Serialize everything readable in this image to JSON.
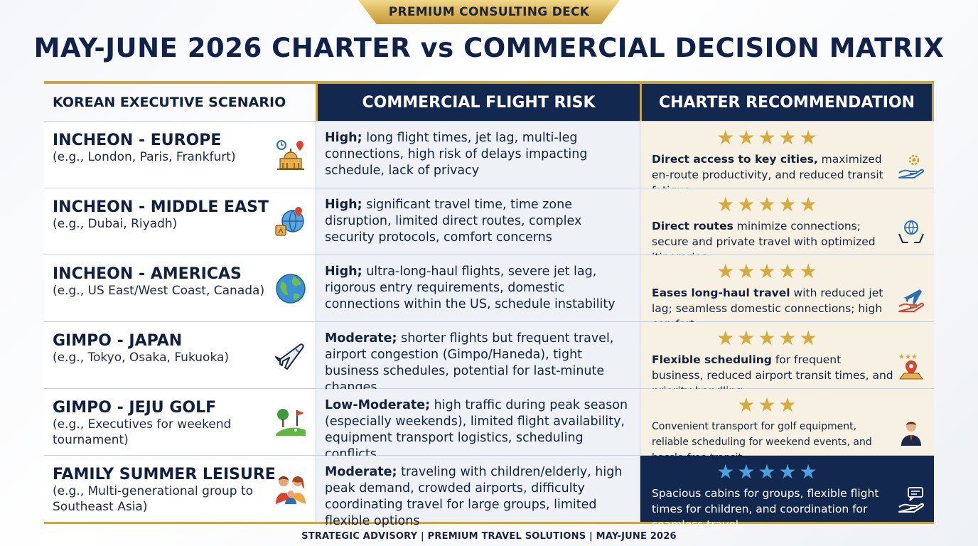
{
  "badge": "PREMIUM CONSULTING DECK",
  "title": "MAY-JUNE 2026 CHARTER vs COMMERCIAL DECISION MATRIX",
  "headers": {
    "scenario": "KOREAN EXECUTIVE SCENARIO",
    "risk": "COMMERCIAL FLIGHT RISK",
    "recommendation": "CHARTER RECOMMENDATION"
  },
  "rows": [
    {
      "route": "INCHEON - EUROPE",
      "examples": "(e.g., London, Paris, Frankfurt)",
      "risk_level": "High;",
      "risk_detail": " long flight times, jet lag, multi-leg connections, high risk of delays impacting schedule, lack of privacy",
      "stars": "★★★★★",
      "rec_lead": "Direct access to key cities,",
      "rec_rest": " maximized en-route productivity, and reduced transit fatigue.",
      "scenario_icon": "landmarks-icon",
      "rec_icon": "hand-gear-icon"
    },
    {
      "route": "INCHEON - MIDDLE EAST",
      "examples": "(e.g., Dubai, Riyadh)",
      "risk_level": "High;",
      "risk_detail": " significant travel time, time zone disruption, limited direct routes, complex security protocols, comfort concerns",
      "stars": "★★★★★",
      "rec_lead": "Direct routes",
      "rec_rest": " minimize connections; secure and private travel with optimized itineraries.",
      "scenario_icon": "globe-pin-icon",
      "rec_icon": "hands-globe-icon"
    },
    {
      "route": "INCHEON - AMERICAS",
      "examples": "(e.g., US East/West Coast, Canada)",
      "risk_level": "High;",
      "risk_detail": " ultra-long-haul flights, severe jet lag, rigorous entry requirements, domestic connections within the US, schedule instability",
      "stars": "★★★★★",
      "rec_lead": "Eases long-haul travel",
      "rec_rest": " with reduced jet lag; seamless domestic connections; high comfort.",
      "scenario_icon": "globe-icon",
      "rec_icon": "hand-plane-icon"
    },
    {
      "route": "GIMPO - JAPAN",
      "examples": "(e.g., Tokyo, Osaka, Fukuoka)",
      "risk_level": "Moderate;",
      "risk_detail": " shorter flights but frequent travel, airport congestion (Gimpo/Haneda), tight business schedules, potential for last-minute changes",
      "stars": "★★★★★",
      "rec_lead": "Flexible scheduling",
      "rec_rest": " for frequent business, reduced airport transit times, and priority handling.",
      "scenario_icon": "airplane-icon",
      "rec_icon": "map-pin-stars-icon"
    },
    {
      "route": "GIMPO - JEJU GOLF",
      "examples": "(e.g., Executives for weekend tournament)",
      "risk_level": "Low-Moderate;",
      "risk_detail": " high traffic during peak season (especially weekends), limited flight availability, equipment transport logistics, scheduling conflicts",
      "stars": "★★★",
      "rec_lead": "",
      "rec_rest": "Convenient transport for golf equipment, reliable scheduling for weekend events, and hassle-free transit.",
      "scenario_icon": "golf-course-icon",
      "rec_icon": "executive-icon"
    },
    {
      "route": "FAMILY SUMMER LEISURE",
      "examples": "(e.g., Multi-generational group to Southeast Asia)",
      "risk_level": "Moderate;",
      "risk_detail": " traveling with children/elderly, high peak demand, crowded airports, difficulty coordinating travel for large groups, limited flexible options",
      "stars": "★★★★★",
      "rec_lead": "",
      "rec_rest": "Spacious cabins for groups, flexible flight times for children, and coordination for seamless travel.",
      "scenario_icon": "family-icon",
      "rec_icon": "hand-chat-icon"
    }
  ],
  "footer": "STRATEGIC ADVISORY | PREMIUM TRAVEL SOLUTIONS | MAY-JUNE 2026",
  "colors": {
    "navy": "#13284f",
    "gold": "#c9a448",
    "star_gold": "#d6aa3c",
    "star_blue": "#4aa0e0"
  }
}
